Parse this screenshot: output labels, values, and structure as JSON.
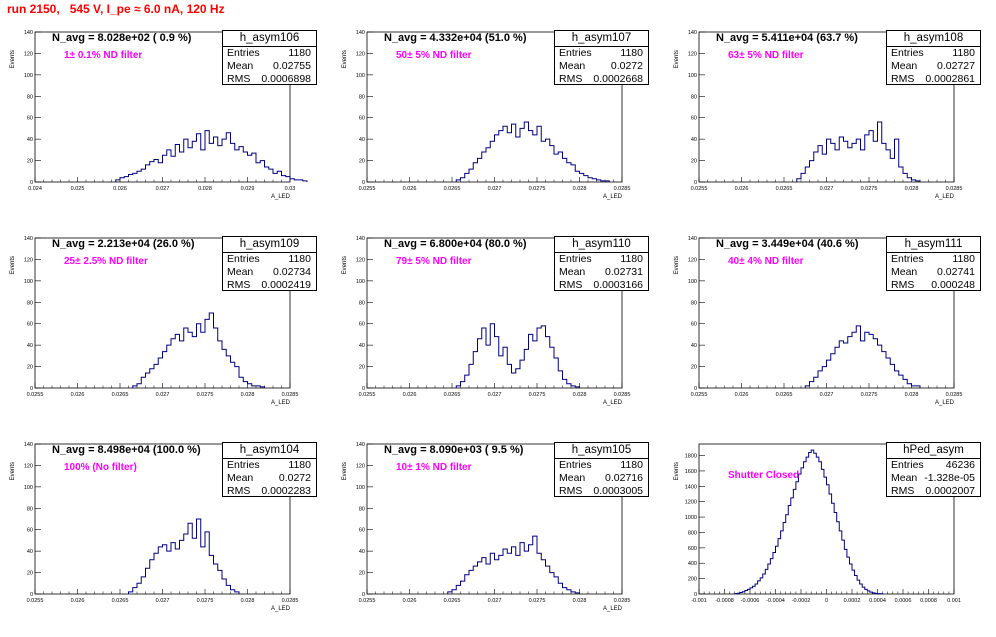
{
  "title": "run 2150,   545 V, I_pe ≈ 6.0 nA, 120 Hz",
  "panels": [
    {
      "name": "h_asym106",
      "stats": {
        "entries": "1180",
        "mean": "0.02755",
        "rms": "0.0006898"
      },
      "n_avg_label": "N_avg = 8.028e+02 ( 0.9 %)",
      "filter_label": "1± 0.1% ND filter",
      "xticks": [
        "0.024",
        "0.025",
        "0.026",
        "0.027",
        "0.028",
        "0.029",
        "0.03"
      ],
      "yticks": [
        "0",
        "20",
        "40",
        "60",
        "80",
        "100",
        "120",
        "140"
      ],
      "xaxis_label": "A_LED",
      "yaxis_label": "Events",
      "chart_data": {
        "type": "bar",
        "xlim": [
          0.024,
          0.03
        ],
        "ylim": [
          0,
          140
        ],
        "bin_width": 0.0001,
        "x_start": 0.0259,
        "values": [
          2,
          4,
          5,
          7,
          8,
          10,
          12,
          16,
          19,
          21,
          18,
          25,
          30,
          24,
          35,
          28,
          40,
          32,
          38,
          45,
          30,
          48,
          36,
          42,
          34,
          40,
          46,
          36,
          30,
          33,
          28,
          25,
          27,
          18,
          20,
          14,
          12,
          8,
          10,
          6,
          5,
          3,
          2,
          2,
          1
        ]
      }
    },
    {
      "name": "h_asym107",
      "stats": {
        "entries": "1180",
        "mean": "0.0272",
        "rms": "0.0002668"
      },
      "n_avg_label": "N_avg = 4.332e+04 (51.0 %)",
      "filter_label": "50± 5% ND filter",
      "xticks": [
        "0.0255",
        "0.026",
        "0.0265",
        "0.027",
        "0.0275",
        "0.028",
        "0.0285"
      ],
      "yticks": [
        "0",
        "20",
        "40",
        "60",
        "80",
        "100",
        "120",
        "140"
      ],
      "xaxis_label": "A_LED",
      "yaxis_label": "Events",
      "chart_data": {
        "type": "bar",
        "xlim": [
          0.0255,
          0.0285
        ],
        "ylim": [
          0,
          140
        ],
        "bin_width": 5e-05,
        "x_start": 0.02655,
        "values": [
          2,
          4,
          8,
          12,
          18,
          22,
          28,
          32,
          38,
          44,
          48,
          52,
          46,
          54,
          42,
          50,
          56,
          48,
          44,
          52,
          38,
          40,
          34,
          26,
          28,
          22,
          18,
          16,
          10,
          8,
          6,
          4,
          3,
          2,
          1,
          1
        ]
      }
    },
    {
      "name": "h_asym108",
      "stats": {
        "entries": "1180",
        "mean": "0.02727",
        "rms": "0.0002861"
      },
      "n_avg_label": "N_avg = 5.411e+04 (63.7 %)",
      "filter_label": "63± 5% ND filter",
      "xticks": [
        "0.0255",
        "0.026",
        "0.0265",
        "0.027",
        "0.0275",
        "0.028",
        "0.0285"
      ],
      "yticks": [
        "0",
        "20",
        "40",
        "60",
        "80",
        "100",
        "120",
        "140"
      ],
      "xaxis_label": "A_LED",
      "yaxis_label": "Events",
      "chart_data": {
        "type": "bar",
        "xlim": [
          0.0255,
          0.0285
        ],
        "ylim": [
          0,
          140
        ],
        "bin_width": 5e-05,
        "x_start": 0.02665,
        "values": [
          3,
          8,
          14,
          20,
          28,
          34,
          26,
          40,
          36,
          30,
          42,
          38,
          32,
          36,
          40,
          30,
          44,
          48,
          38,
          56,
          36,
          30,
          22,
          40,
          14,
          8,
          4,
          2,
          1
        ]
      }
    },
    {
      "name": "h_asym109",
      "stats": {
        "entries": "1180",
        "mean": "0.02734",
        "rms": "0.0002419"
      },
      "n_avg_label": "N_avg = 2.213e+04 (26.0 %)",
      "filter_label": "25± 2.5% ND filter",
      "xticks": [
        "0.0255",
        "0.026",
        "0.0265",
        "0.027",
        "0.0275",
        "0.028",
        "0.0285"
      ],
      "yticks": [
        "0",
        "20",
        "40",
        "60",
        "80",
        "100",
        "120",
        "140"
      ],
      "xaxis_label": "A_LED",
      "yaxis_label": "Events",
      "chart_data": {
        "type": "bar",
        "xlim": [
          0.0255,
          0.0285
        ],
        "ylim": [
          0,
          140
        ],
        "bin_width": 5e-05,
        "x_start": 0.02665,
        "values": [
          2,
          4,
          10,
          14,
          18,
          22,
          28,
          34,
          40,
          46,
          50,
          44,
          56,
          52,
          48,
          60,
          52,
          64,
          70,
          56,
          44,
          36,
          30,
          24,
          20,
          10,
          6,
          4,
          2,
          2,
          1
        ]
      }
    },
    {
      "name": "h_asym110",
      "stats": {
        "entries": "1180",
        "mean": "0.02731",
        "rms": "0.0003166"
      },
      "n_avg_label": "N_avg = 6.800e+04 (80.0 %)",
      "filter_label": "79± 5% ND filter",
      "xticks": [
        "0.0255",
        "0.026",
        "0.0265",
        "0.027",
        "0.0275",
        "0.028",
        "0.0285"
      ],
      "yticks": [
        "0",
        "20",
        "40",
        "60",
        "80",
        "100",
        "120",
        "140"
      ],
      "xaxis_label": "A_LED",
      "yaxis_label": "Events",
      "chart_data": {
        "type": "bar",
        "xlim": [
          0.0255,
          0.0285
        ],
        "ylim": [
          0,
          140
        ],
        "bin_width": 5e-05,
        "x_start": 0.02655,
        "values": [
          2,
          6,
          12,
          22,
          34,
          46,
          56,
          40,
          60,
          48,
          30,
          38,
          22,
          14,
          18,
          26,
          36,
          50,
          44,
          56,
          58,
          48,
          38,
          28,
          16,
          8,
          4,
          2,
          1
        ]
      }
    },
    {
      "name": "h_asym111",
      "stats": {
        "entries": "1180",
        "mean": "0.02741",
        "rms": "0.000248"
      },
      "n_avg_label": "N_avg = 3.449e+04 (40.6 %)",
      "filter_label": "40± 4% ND filter",
      "xticks": [
        "0.0255",
        "0.026",
        "0.0265",
        "0.027",
        "0.0275",
        "0.028",
        "0.0285"
      ],
      "yticks": [
        "0",
        "20",
        "40",
        "60",
        "80",
        "100",
        "120",
        "140"
      ],
      "xaxis_label": "A_LED",
      "yaxis_label": "Events",
      "chart_data": {
        "type": "bar",
        "xlim": [
          0.0255,
          0.0285
        ],
        "ylim": [
          0,
          140
        ],
        "bin_width": 5e-05,
        "x_start": 0.02675,
        "values": [
          2,
          6,
          10,
          16,
          20,
          26,
          32,
          38,
          44,
          42,
          48,
          52,
          58,
          44,
          52,
          50,
          46,
          40,
          34,
          28,
          22,
          16,
          12,
          8,
          4,
          2,
          2
        ]
      }
    },
    {
      "name": "h_asym104",
      "stats": {
        "entries": "1180",
        "mean": "0.0272",
        "rms": "0.0002283"
      },
      "n_avg_label": "N_avg = 8.498e+04 (100.0 %)",
      "filter_label": "100% (No filter)",
      "xticks": [
        "0.0255",
        "0.026",
        "0.0265",
        "0.027",
        "0.0275",
        "0.028",
        "0.0285"
      ],
      "yticks": [
        "0",
        "20",
        "40",
        "60",
        "80",
        "100",
        "120",
        "140"
      ],
      "xaxis_label": "A_LED",
      "yaxis_label": "Events",
      "chart_data": {
        "type": "bar",
        "xlim": [
          0.0255,
          0.0285
        ],
        "ylim": [
          0,
          140
        ],
        "bin_width": 5e-05,
        "x_start": 0.0266,
        "values": [
          2,
          6,
          10,
          16,
          24,
          32,
          38,
          44,
          46,
          40,
          48,
          42,
          50,
          56,
          66,
          52,
          70,
          44,
          58,
          36,
          28,
          22,
          14,
          8,
          4,
          2
        ]
      }
    },
    {
      "name": "h_asym105",
      "stats": {
        "entries": "1180",
        "mean": "0.02716",
        "rms": "0.0003005"
      },
      "n_avg_label": "N_avg = 8.090e+03 ( 9.5 %)",
      "filter_label": "10± 1% ND filter",
      "xticks": [
        "0.0255",
        "0.026",
        "0.0265",
        "0.027",
        "0.0275",
        "0.028",
        "0.0285"
      ],
      "yticks": [
        "0",
        "20",
        "40",
        "60",
        "80",
        "100",
        "120",
        "140"
      ],
      "xaxis_label": "A_LED",
      "yaxis_label": "Events",
      "chart_data": {
        "type": "bar",
        "xlim": [
          0.0255,
          0.0285
        ],
        "ylim": [
          0,
          140
        ],
        "bin_width": 5e-05,
        "x_start": 0.02645,
        "values": [
          2,
          4,
          8,
          12,
          18,
          22,
          26,
          30,
          34,
          28,
          38,
          32,
          36,
          42,
          38,
          44,
          36,
          48,
          40,
          46,
          54,
          38,
          32,
          26,
          20,
          16,
          10,
          6,
          4,
          2,
          1
        ]
      }
    },
    {
      "name": "hPed_asym",
      "stats": {
        "entries": "46236",
        "mean": "-1.328e-05",
        "rms": "0.0002007"
      },
      "n_avg_label": "",
      "filter_label": "Shutter Closed",
      "xticks": [
        "-0.001",
        "-0.0008",
        "-0.0006",
        "-0.0004",
        "-0.0002",
        "0",
        "0.0002",
        "0.0004",
        "0.0006",
        "0.0008",
        "0.001"
      ],
      "yticks": [
        "0",
        "200",
        "400",
        "600",
        "800",
        "1000",
        "1200",
        "1400",
        "1600",
        "1800"
      ],
      "xaxis_label": "",
      "yaxis_label": "Events",
      "chart_data": {
        "type": "bar",
        "xlim": [
          -0.001,
          0.001
        ],
        "ylim": [
          0,
          1950
        ],
        "bin_width": 2e-05,
        "x_start": -0.00072,
        "values": [
          5,
          10,
          20,
          30,
          45,
          60,
          80,
          100,
          130,
          170,
          210,
          260,
          320,
          390,
          460,
          540,
          620,
          720,
          820,
          930,
          1030,
          1150,
          1250,
          1360,
          1460,
          1560,
          1640,
          1720,
          1780,
          1840,
          1870,
          1830,
          1780,
          1720,
          1620,
          1520,
          1420,
          1300,
          1180,
          1060,
          940,
          820,
          700,
          580,
          480,
          390,
          310,
          240,
          180,
          130,
          90,
          60,
          40,
          25,
          15,
          8,
          5,
          3
        ]
      }
    }
  ]
}
